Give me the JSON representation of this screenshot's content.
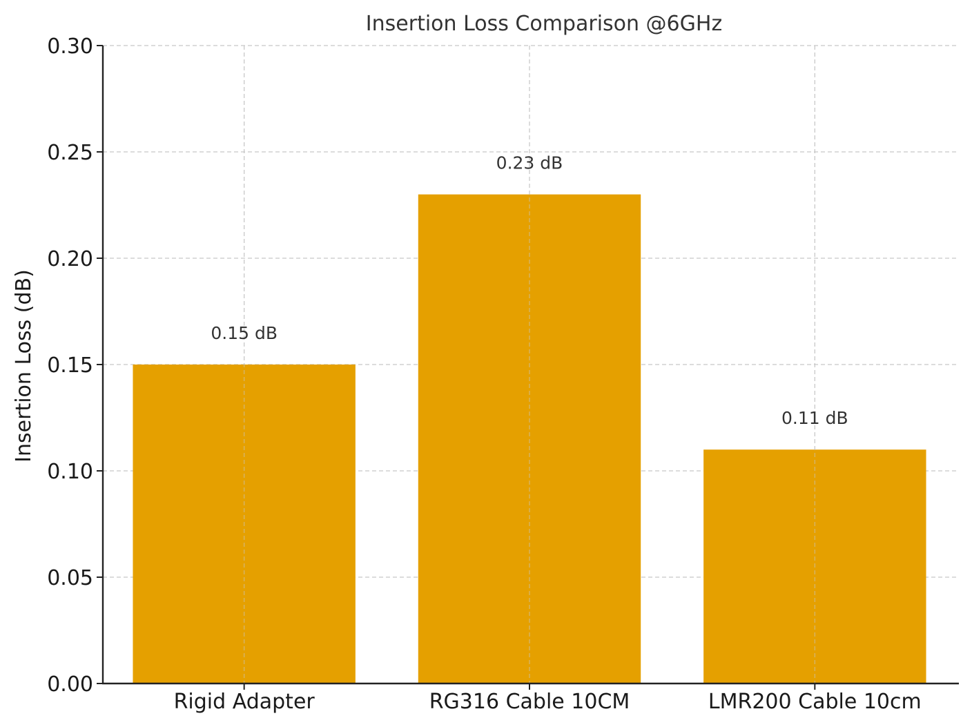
{
  "chart_data": {
    "type": "bar",
    "title": "Insertion Loss Comparison @6GHz",
    "xlabel": "",
    "ylabel": "Insertion Loss (dB)",
    "categories": [
      "Rigid Adapter",
      "RG316 Cable 10CM",
      "LMR200 Cable 10cm"
    ],
    "values": [
      0.15,
      0.23,
      0.11
    ],
    "data_labels": [
      "0.15 dB",
      "0.23 dB",
      "0.11 dB"
    ],
    "ylim": [
      0,
      0.3
    ],
    "yticks": [
      "0.00",
      "0.05",
      "0.10",
      "0.15",
      "0.20",
      "0.25",
      "0.30"
    ],
    "grid": true,
    "bar_color": "#E5A000"
  }
}
